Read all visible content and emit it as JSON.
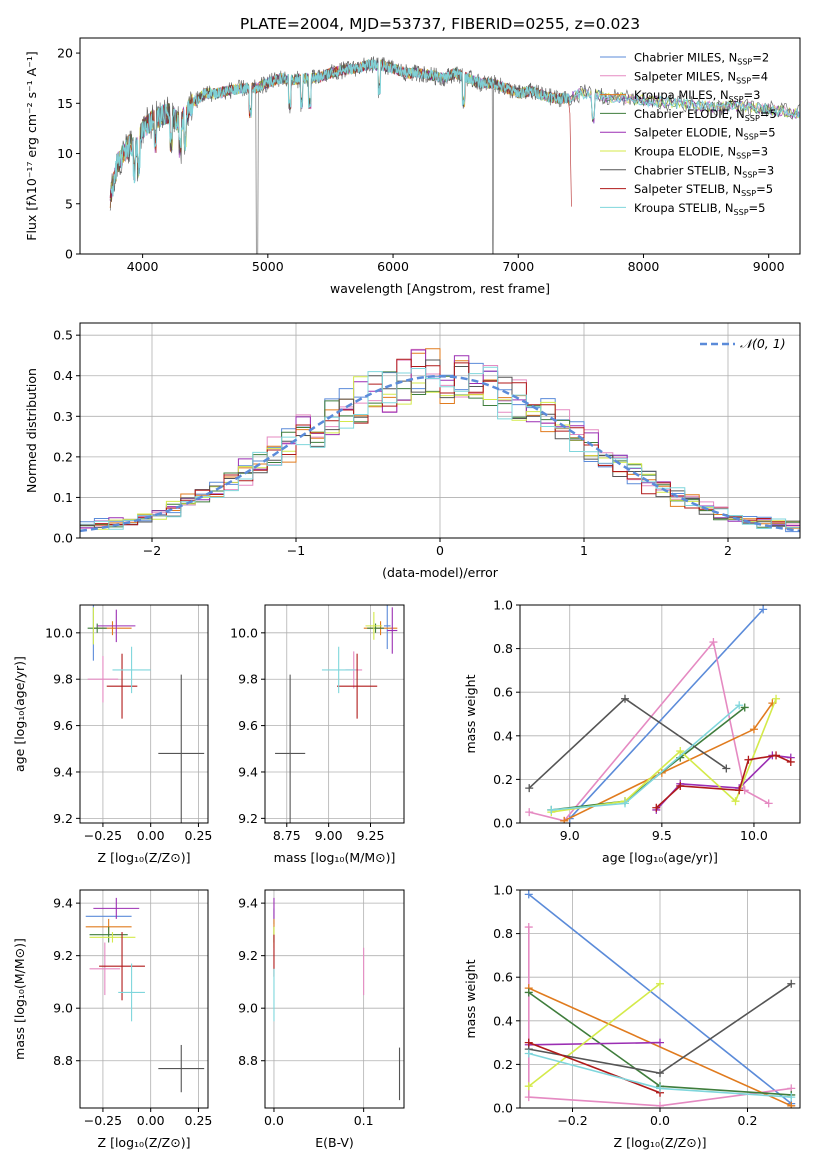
{
  "figure_title": "PLATE=2004, MJD=53737, FIBERID=0255, z=0.023",
  "models": [
    {
      "key": "cm",
      "label_pre": "Chabrier MILES, N",
      "label_post": "=2",
      "color": "#5b8bd9"
    },
    {
      "key": "sm",
      "label_pre": "Salpeter MILES, N",
      "label_post": "=4",
      "color": "#e58ac2"
    },
    {
      "key": "km",
      "label_pre": "Kroupa MILES, N",
      "label_post": "=3",
      "color": "#e07b1e"
    },
    {
      "key": "ce",
      "label_pre": "Chabrier ELODIE, N",
      "label_post": "=5",
      "color": "#3f7d3c"
    },
    {
      "key": "se",
      "label_pre": "Salpeter ELODIE, N",
      "label_post": "=5",
      "color": "#9b2fb3"
    },
    {
      "key": "ke",
      "label_pre": "Kroupa ELODIE, N",
      "label_post": "=3",
      "color": "#d4ea4a"
    },
    {
      "key": "cs",
      "label_pre": "Chabrier STELIB, N",
      "label_post": "=3",
      "color": "#555555"
    },
    {
      "key": "ss",
      "label_pre": "Salpeter STELIB, N",
      "label_post": "=5",
      "color": "#b01a1a"
    },
    {
      "key": "ks",
      "label_pre": "Kroupa STELIB, N",
      "label_post": "=5",
      "color": "#7fd6dc"
    }
  ],
  "label_sub": "SSP",
  "chart_data": [
    {
      "type": "line",
      "title": "PLATE=2004, MJD=53737, FIBERID=0255, z=0.023",
      "xlabel": "wavelength [Angstrom, rest frame]",
      "ylabel": "Flux [fλ10⁻¹⁷ erg cm⁻² s⁻¹ A⁻¹]",
      "xlim": [
        3500,
        9250
      ],
      "ylim": [
        0,
        21.5
      ],
      "xticks": [
        4000,
        5000,
        6000,
        7000,
        8000,
        9000
      ],
      "yticks": [
        0,
        5,
        10,
        15,
        20
      ],
      "continuum": {
        "x": [
          3740,
          3800,
          3900,
          3950,
          4000,
          4100,
          4200,
          4300,
          4400,
          4500,
          4600,
          4700,
          4800,
          4900,
          5000,
          5100,
          5200,
          5300,
          5400,
          5500,
          5600,
          5700,
          5800,
          5900,
          6000,
          6100,
          6200,
          6300,
          6400,
          6500,
          6600,
          6700,
          6800,
          6900,
          7000,
          7100,
          7200,
          7300,
          7400,
          7430
        ],
        "y": [
          5.5,
          9.0,
          11.0,
          10.5,
          12.5,
          13.5,
          14.0,
          13.0,
          15.0,
          16.0,
          16.0,
          16.3,
          16.5,
          16.5,
          17.0,
          17.5,
          17.3,
          17.5,
          17.5,
          18.0,
          18.3,
          18.5,
          18.8,
          18.8,
          18.5,
          18.0,
          18.0,
          17.8,
          17.5,
          18.0,
          17.5,
          17.0,
          17.0,
          16.5,
          16.0,
          16.2,
          15.8,
          15.5,
          15.5,
          15.5
        ]
      },
      "absorption_lines": [
        3934,
        3969,
        4102,
        4227,
        4300,
        4340,
        4861,
        5175,
        5270,
        5335,
        5890,
        6563,
        7600
      ],
      "gaps": [
        [
          4905,
          4920
        ],
        [
          6795,
          6800
        ]
      ],
      "model_continuum": {
        "x": [
          7400,
          7500,
          7600,
          7700,
          7800,
          7900,
          8000,
          8100,
          8200,
          8300,
          8400,
          8500,
          8600,
          8700,
          8800,
          8900,
          9000,
          9100,
          9200
        ],
        "y": [
          15.5,
          16.0,
          16.0,
          15.5,
          15.6,
          15.4,
          15.3,
          15.2,
          15.0,
          15.0,
          14.8,
          14.7,
          14.6,
          14.8,
          14.7,
          14.5,
          14.4,
          14.2,
          14.0
        ]
      }
    },
    {
      "type": "bar",
      "xlabel": "(data-model)/error",
      "ylabel": "Normed distribution",
      "xlim": [
        -2.5,
        2.5
      ],
      "ylim": [
        0,
        0.53
      ],
      "xticks": [
        -2,
        -1,
        0,
        1,
        2
      ],
      "xtick_labels": [
        "−2",
        "−1",
        "0",
        "1",
        "2"
      ],
      "yticks": [
        0.0,
        0.1,
        0.2,
        0.3,
        0.4,
        0.5
      ],
      "bin_width": 0.1,
      "gaussian_label": "𝒩(0, 1)",
      "gaussian_color": "#5b8bd9"
    },
    {
      "type": "scatter",
      "xlabel": "Z [log₁₀(Z/Z⊙)]",
      "ylabel": "age  [log₁₀(age/yr)]",
      "xlim": [
        -0.37,
        0.3
      ],
      "ylim": [
        9.18,
        10.12
      ],
      "xticks": [
        -0.25,
        0.0,
        0.25
      ],
      "xtick_labels": [
        "−0.25",
        "0.00",
        "0.25"
      ],
      "yticks": [
        9.2,
        9.4,
        9.6,
        9.8,
        10.0
      ],
      "points": [
        {
          "key": "cm",
          "x": -0.3,
          "xe": 0.0,
          "y": 10.03,
          "ye": 0.15
        },
        {
          "key": "sm",
          "x": -0.25,
          "xe": 0.08,
          "y": 9.8,
          "ye": 0.1
        },
        {
          "key": "km",
          "x": -0.2,
          "xe": 0.1,
          "y": 10.02,
          "ye": 0.03
        },
        {
          "key": "ce",
          "x": -0.28,
          "xe": 0.05,
          "y": 10.02,
          "ye": 0.02
        },
        {
          "key": "se",
          "x": -0.18,
          "xe": 0.1,
          "y": 10.03,
          "ye": 0.07
        },
        {
          "key": "ke",
          "x": -0.3,
          "xe": 0.0,
          "y": 10.03,
          "ye": 0.08
        },
        {
          "key": "cs",
          "x": 0.16,
          "xe": 0.12,
          "y": 9.48,
          "ye": 0.34
        },
        {
          "key": "ss",
          "x": -0.15,
          "xe": 0.08,
          "y": 9.77,
          "ye": 0.14
        },
        {
          "key": "ks",
          "x": -0.1,
          "xe": 0.1,
          "y": 9.84,
          "ye": 0.1
        }
      ]
    },
    {
      "type": "scatter",
      "xlabel": "mass [log₁₀(M/M⊙)]",
      "ylabel": "",
      "xlim": [
        8.62,
        9.45
      ],
      "ylim": [
        9.18,
        10.12
      ],
      "xticks": [
        8.75,
        9.0,
        9.25
      ],
      "xtick_labels": [
        "8.75",
        "9.00",
        "9.25"
      ],
      "yticks": [
        9.2,
        9.4,
        9.6,
        9.8,
        10.0
      ],
      "points": [
        {
          "key": "cm",
          "x": 9.35,
          "xe": 0.02,
          "y": 10.03,
          "ye": 0.1
        },
        {
          "key": "sm",
          "x": 9.15,
          "xe": 0.05,
          "y": 9.84,
          "ye": 0.08
        },
        {
          "key": "km",
          "x": 9.31,
          "xe": 0.1,
          "y": 10.02,
          "ye": 0.03
        },
        {
          "key": "ce",
          "x": 9.28,
          "xe": 0.05,
          "y": 10.02,
          "ye": 0.02
        },
        {
          "key": "se",
          "x": 9.38,
          "xe": 0.03,
          "y": 10.01,
          "ye": 0.1
        },
        {
          "key": "ke",
          "x": 9.27,
          "xe": 0.05,
          "y": 10.03,
          "ye": 0.06
        },
        {
          "key": "cs",
          "x": 8.77,
          "xe": 0.09,
          "y": 9.48,
          "ye": 0.34
        },
        {
          "key": "ss",
          "x": 9.17,
          "xe": 0.12,
          "y": 9.77,
          "ye": 0.14
        },
        {
          "key": "ks",
          "x": 9.06,
          "xe": 0.1,
          "y": 9.84,
          "ye": 0.1
        }
      ]
    },
    {
      "type": "line",
      "xlabel": "age  [log₁₀(age/yr)]",
      "ylabel": "mass weight",
      "xlim": [
        8.73,
        10.25
      ],
      "ylim": [
        0.0,
        1.0
      ],
      "xticks": [
        9.0,
        9.5,
        10.0
      ],
      "xtick_labels": [
        "9.0",
        "9.5",
        "10.0"
      ],
      "yticks": [
        0.0,
        0.2,
        0.4,
        0.6,
        0.8,
        1.0
      ],
      "series": [
        {
          "key": "cm",
          "x": [
            9.0,
            10.05
          ],
          "y": [
            0.02,
            0.98
          ]
        },
        {
          "key": "sm",
          "x": [
            8.78,
            8.97,
            9.78,
            9.95,
            10.08
          ],
          "y": [
            0.05,
            0.01,
            0.83,
            0.15,
            0.09
          ]
        },
        {
          "key": "km",
          "x": [
            8.97,
            9.5,
            10.0,
            10.1
          ],
          "y": [
            0.01,
            0.23,
            0.43,
            0.55
          ]
        },
        {
          "key": "ce",
          "x": [
            8.9,
            9.3,
            9.6,
            9.95
          ],
          "y": [
            0.06,
            0.1,
            0.3,
            0.53
          ]
        },
        {
          "key": "se",
          "x": [
            9.47,
            9.6,
            9.92,
            10.1,
            10.2
          ],
          "y": [
            0.06,
            0.18,
            0.16,
            0.31,
            0.3
          ]
        },
        {
          "key": "ke",
          "x": [
            8.9,
            9.3,
            9.6,
            9.9,
            10.12
          ],
          "y": [
            0.05,
            0.1,
            0.33,
            0.1,
            0.57
          ]
        },
        {
          "key": "cs",
          "x": [
            8.78,
            9.3,
            9.85
          ],
          "y": [
            0.16,
            0.57,
            0.25
          ]
        },
        {
          "key": "ss",
          "x": [
            9.47,
            9.6,
            9.92,
            9.97,
            10.12,
            10.2
          ],
          "y": [
            0.07,
            0.17,
            0.15,
            0.29,
            0.31,
            0.28
          ]
        },
        {
          "key": "ks",
          "x": [
            8.9,
            9.3,
            9.92
          ],
          "y": [
            0.06,
            0.09,
            0.54
          ]
        }
      ]
    },
    {
      "type": "scatter",
      "xlabel": "Z [log₁₀(Z/Z⊙)]",
      "ylabel": "mass [log₁₀(M/M⊙)]",
      "xlim": [
        -0.37,
        0.3
      ],
      "ylim": [
        8.62,
        9.45
      ],
      "xticks": [
        -0.25,
        0.0,
        0.25
      ],
      "xtick_labels": [
        "−0.25",
        "0.00",
        "0.25"
      ],
      "yticks": [
        8.8,
        9.0,
        9.2,
        9.4
      ],
      "points": [
        {
          "key": "cm",
          "x": -0.22,
          "xe": 0.12,
          "y": 9.35,
          "ye": 0.0
        },
        {
          "key": "sm",
          "x": -0.24,
          "xe": 0.08,
          "y": 9.15,
          "ye": 0.1
        },
        {
          "key": "km",
          "x": -0.22,
          "xe": 0.12,
          "y": 9.31,
          "ye": 0.03
        },
        {
          "key": "ce",
          "x": -0.22,
          "xe": 0.1,
          "y": 9.28,
          "ye": 0.03
        },
        {
          "key": "se",
          "x": -0.18,
          "xe": 0.12,
          "y": 9.38,
          "ye": 0.04
        },
        {
          "key": "ke",
          "x": -0.2,
          "xe": 0.12,
          "y": 9.27,
          "ye": 0.02
        },
        {
          "key": "cs",
          "x": 0.16,
          "xe": 0.12,
          "y": 8.77,
          "ye": 0.09
        },
        {
          "key": "ss",
          "x": -0.15,
          "xe": 0.12,
          "y": 9.16,
          "ye": 0.13
        },
        {
          "key": "ks",
          "x": -0.1,
          "xe": 0.07,
          "y": 9.06,
          "ye": 0.11
        }
      ]
    },
    {
      "type": "scatter",
      "xlabel": "E(B-V)",
      "ylabel": "",
      "xlim": [
        -0.01,
        0.145
      ],
      "ylim": [
        8.62,
        9.45
      ],
      "xticks": [
        0.0,
        0.1
      ],
      "xtick_labels": [
        "0.0",
        "0.1"
      ],
      "yticks": [
        8.8,
        9.0,
        9.2,
        9.4
      ],
      "points": [
        {
          "key": "cm",
          "x": 0.0,
          "xe": 0.0,
          "y": 9.35,
          "ye": 0.03
        },
        {
          "key": "sm",
          "x": 0.1,
          "xe": 0.0,
          "y": 9.14,
          "ye": 0.09
        },
        {
          "key": "km",
          "x": 0.0,
          "xe": 0.0,
          "y": 9.31,
          "ye": 0.03
        },
        {
          "key": "ce",
          "x": 0.0,
          "xe": 0.0,
          "y": 9.28,
          "ye": 0.03
        },
        {
          "key": "se",
          "x": 0.0,
          "xe": 0.0,
          "y": 9.38,
          "ye": 0.04
        },
        {
          "key": "ke",
          "x": 0.0,
          "xe": 0.0,
          "y": 9.27,
          "ye": 0.04
        },
        {
          "key": "cs",
          "x": 0.14,
          "xe": 0.0,
          "y": 8.75,
          "ye": 0.1
        },
        {
          "key": "ss",
          "x": 0.0,
          "xe": 0.0,
          "y": 9.2,
          "ye": 0.08
        },
        {
          "key": "ks",
          "x": 0.0,
          "xe": 0.0,
          "y": 9.05,
          "ye": 0.1
        }
      ]
    },
    {
      "type": "line",
      "xlabel": "Z [log₁₀(Z/Z⊙)]",
      "ylabel": "mass weight",
      "xlim": [
        -0.32,
        0.32
      ],
      "ylim": [
        0.0,
        1.0
      ],
      "xticks": [
        -0.2,
        0.0,
        0.2
      ],
      "xtick_labels": [
        "−0.2",
        "0.0",
        "0.2"
      ],
      "yticks": [
        0.0,
        0.2,
        0.4,
        0.6,
        0.8,
        1.0
      ],
      "series": [
        {
          "key": "cm",
          "x": [
            -0.3,
            0.3
          ],
          "y": [
            0.98,
            0.02
          ]
        },
        {
          "key": "sm",
          "x": [
            -0.3,
            -0.3,
            0.0,
            0.3
          ],
          "y": [
            0.83,
            0.05,
            0.01,
            0.09
          ]
        },
        {
          "key": "km",
          "x": [
            -0.3,
            0.3
          ],
          "y": [
            0.55,
            0.01
          ]
        },
        {
          "key": "ce",
          "x": [
            -0.3,
            0.0,
            0.3
          ],
          "y": [
            0.53,
            0.1,
            0.06
          ]
        },
        {
          "key": "se",
          "x": [
            -0.3,
            0.0
          ],
          "y": [
            0.29,
            0.3
          ]
        },
        {
          "key": "ke",
          "x": [
            -0.3,
            0.0
          ],
          "y": [
            0.1,
            0.57
          ]
        },
        {
          "key": "cs",
          "x": [
            -0.3,
            0.0,
            0.3
          ],
          "y": [
            0.27,
            0.16,
            0.57
          ]
        },
        {
          "key": "ss",
          "x": [
            -0.3,
            0.0
          ],
          "y": [
            0.3,
            0.07
          ]
        },
        {
          "key": "ks",
          "x": [
            -0.3,
            0.0,
            0.3
          ],
          "y": [
            0.25,
            0.09,
            0.05
          ]
        }
      ]
    }
  ]
}
